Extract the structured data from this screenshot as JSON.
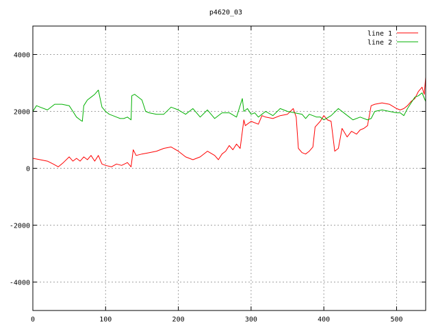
{
  "chart_data": {
    "type": "line",
    "title": "p4620_03",
    "xlabel": "",
    "ylabel": "",
    "xlim": [
      0,
      540
    ],
    "ylim": [
      -5000,
      5000
    ],
    "xticks": [
      0,
      100,
      200,
      300,
      400,
      500
    ],
    "yticks": [
      -4000,
      -2000,
      0,
      2000,
      4000
    ],
    "grid": true,
    "legend_position": "top-right",
    "series": [
      {
        "name": "line 1",
        "color": "#ff0000",
        "x": [
          0,
          10,
          20,
          28,
          35,
          42,
          50,
          55,
          60,
          65,
          70,
          75,
          80,
          85,
          90,
          95,
          100,
          108,
          115,
          122,
          130,
          135,
          138,
          142,
          150,
          160,
          170,
          180,
          190,
          200,
          210,
          220,
          230,
          240,
          250,
          255,
          260,
          265,
          270,
          275,
          280,
          285,
          290,
          292,
          300,
          310,
          315,
          320,
          330,
          340,
          350,
          358,
          362,
          365,
          370,
          375,
          380,
          385,
          388,
          395,
          400,
          405,
          410,
          415,
          420,
          425,
          432,
          438,
          445,
          450,
          455,
          460,
          465,
          470,
          480,
          490,
          500,
          505,
          510,
          515,
          520,
          525,
          530,
          535,
          538,
          540
        ],
        "y": [
          350,
          300,
          250,
          150,
          50,
          200,
          400,
          250,
          350,
          250,
          400,
          300,
          450,
          250,
          450,
          150,
          100,
          50,
          150,
          100,
          200,
          50,
          650,
          450,
          500,
          550,
          600,
          700,
          750,
          600,
          400,
          300,
          400,
          600,
          450,
          300,
          500,
          600,
          800,
          650,
          850,
          700,
          1700,
          1500,
          1650,
          1550,
          1850,
          1800,
          1750,
          1850,
          1900,
          2100,
          1800,
          700,
          550,
          500,
          600,
          750,
          1450,
          1650,
          1850,
          1700,
          1650,
          600,
          700,
          1400,
          1100,
          1300,
          1200,
          1350,
          1400,
          1500,
          2200,
          2250,
          2300,
          2250,
          2100,
          2050,
          2100,
          2200,
          2350,
          2450,
          2700,
          2850,
          2600,
          3200
        ]
      },
      {
        "name": "line 2",
        "color": "#00b000",
        "x": [
          0,
          5,
          10,
          20,
          30,
          40,
          50,
          55,
          60,
          65,
          68,
          70,
          75,
          80,
          85,
          90,
          95,
          100,
          105,
          110,
          115,
          120,
          125,
          130,
          135,
          136,
          140,
          150,
          155,
          160,
          170,
          180,
          190,
          200,
          210,
          220,
          230,
          240,
          250,
          260,
          270,
          280,
          288,
          290,
          295,
          300,
          305,
          310,
          320,
          330,
          340,
          350,
          360,
          370,
          375,
          380,
          385,
          390,
          395,
          400,
          410,
          420,
          430,
          440,
          450,
          460,
          465,
          470,
          480,
          490,
          500,
          505,
          510,
          515,
          520,
          525,
          530,
          535,
          540
        ],
        "y": [
          2000,
          2200,
          2150,
          2050,
          2250,
          2250,
          2200,
          2000,
          1800,
          1700,
          1650,
          2200,
          2400,
          2500,
          2600,
          2750,
          2150,
          2000,
          1900,
          1850,
          1800,
          1750,
          1750,
          1800,
          1700,
          2550,
          2600,
          2400,
          2000,
          1950,
          1900,
          1900,
          2150,
          2050,
          1900,
          2100,
          1800,
          2050,
          1750,
          1950,
          1950,
          1800,
          2450,
          2000,
          2100,
          1900,
          1950,
          1800,
          2000,
          1850,
          2100,
          2000,
          1950,
          1900,
          1750,
          1900,
          1850,
          1800,
          1800,
          1700,
          1850,
          2100,
          1900,
          1700,
          1800,
          1700,
          1750,
          2000,
          2050,
          2000,
          1950,
          1950,
          1850,
          2100,
          2300,
          2500,
          2550,
          2650,
          2350
        ]
      }
    ]
  }
}
